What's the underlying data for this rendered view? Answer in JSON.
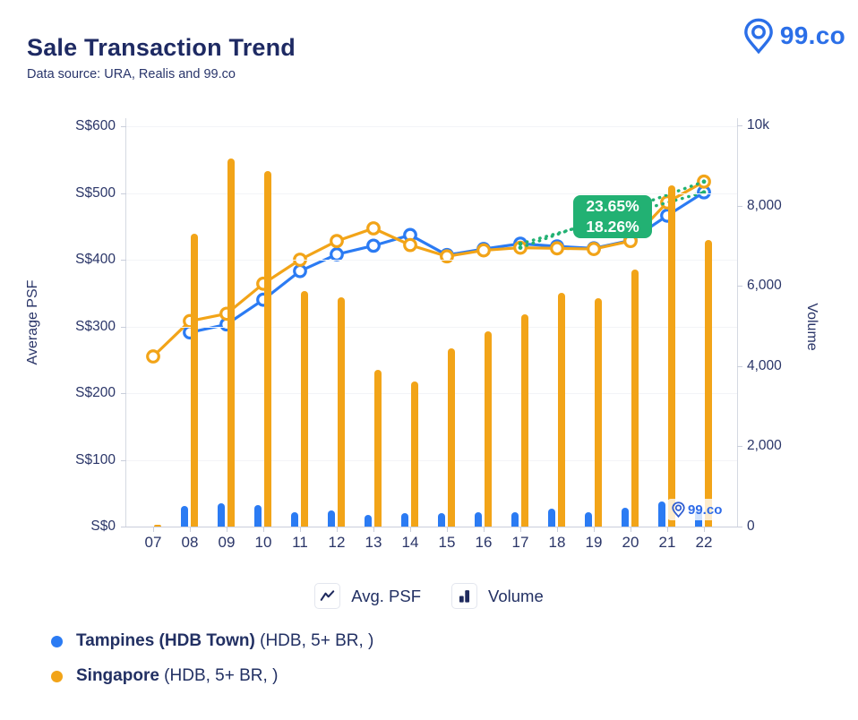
{
  "header": {
    "title": "Sale Transaction Trend",
    "subtitle": "Data source: URA, Realis and 99.co",
    "brand": "99.co"
  },
  "watermark": "99.co",
  "colors": {
    "tampines_blue": "#2b7bf3",
    "singapore_orange": "#f2a418",
    "annotation_green": "#22b173",
    "brand_blue": "#2b6fe8",
    "navy_text": "#223063"
  },
  "chart_data": {
    "type": "combo-line-bar",
    "x": [
      "07",
      "08",
      "09",
      "10",
      "11",
      "12",
      "13",
      "14",
      "15",
      "16",
      "17",
      "18",
      "19",
      "20",
      "21",
      "22"
    ],
    "left_axis": {
      "title": "Average PSF",
      "tick_labels": [
        "S$0",
        "S$100",
        "S$200",
        "S$300",
        "S$400",
        "S$500",
        "S$600"
      ],
      "tick_values": [
        0,
        100,
        200,
        300,
        400,
        500,
        600
      ],
      "range": [
        0,
        600
      ]
    },
    "right_axis": {
      "title": "Volume",
      "tick_labels": [
        "0",
        "2,000",
        "4,000",
        "6,000",
        "8,000",
        "10k"
      ],
      "tick_values": [
        0,
        2000,
        4000,
        6000,
        8000,
        10000
      ],
      "range": [
        0,
        10000
      ]
    },
    "series": [
      {
        "name": "Tampines (HDB Town) Avg. PSF",
        "type": "line",
        "axis": "left",
        "color": "#2b7bf3",
        "values": [
          null,
          291,
          303,
          340,
          383,
          408,
          421,
          437,
          407,
          416,
          424,
          420,
          417,
          429,
          466,
          501
        ]
      },
      {
        "name": "Singapore Avg. PSF",
        "type": "line",
        "axis": "left",
        "color": "#f2a418",
        "values": [
          255,
          308,
          319,
          364,
          400,
          428,
          447,
          422,
          405,
          414,
          418,
          417,
          416,
          428,
          486,
          517
        ]
      },
      {
        "name": "Tampines (HDB Town) Volume",
        "type": "bar",
        "axis": "right",
        "color": "#2b7bf3",
        "values": [
          null,
          510,
          570,
          530,
          350,
          400,
          290,
          330,
          330,
          350,
          350,
          450,
          360,
          470,
          620,
          400
        ]
      },
      {
        "name": "Singapore Volume",
        "type": "bar",
        "axis": "right",
        "color": "#f2a418",
        "values": [
          40,
          7300,
          9170,
          8870,
          5880,
          5720,
          3910,
          3620,
          4440,
          4860,
          5280,
          5830,
          5690,
          6410,
          8500,
          7150
        ]
      }
    ],
    "annotation": {
      "labels": [
        "23.65%",
        "18.26%"
      ],
      "from_x": "17",
      "to_x": "22",
      "color": "#22b173"
    }
  },
  "legend": {
    "items": [
      {
        "label": "Avg. PSF"
      },
      {
        "label": "Volume"
      }
    ]
  },
  "series_legend": [
    {
      "name": "Tampines (HDB Town)",
      "suffix": " (HDB, 5+ BR, )",
      "color": "#2b7bf3"
    },
    {
      "name": "Singapore",
      "suffix": " (HDB, 5+ BR, )",
      "color": "#f2a418"
    }
  ]
}
